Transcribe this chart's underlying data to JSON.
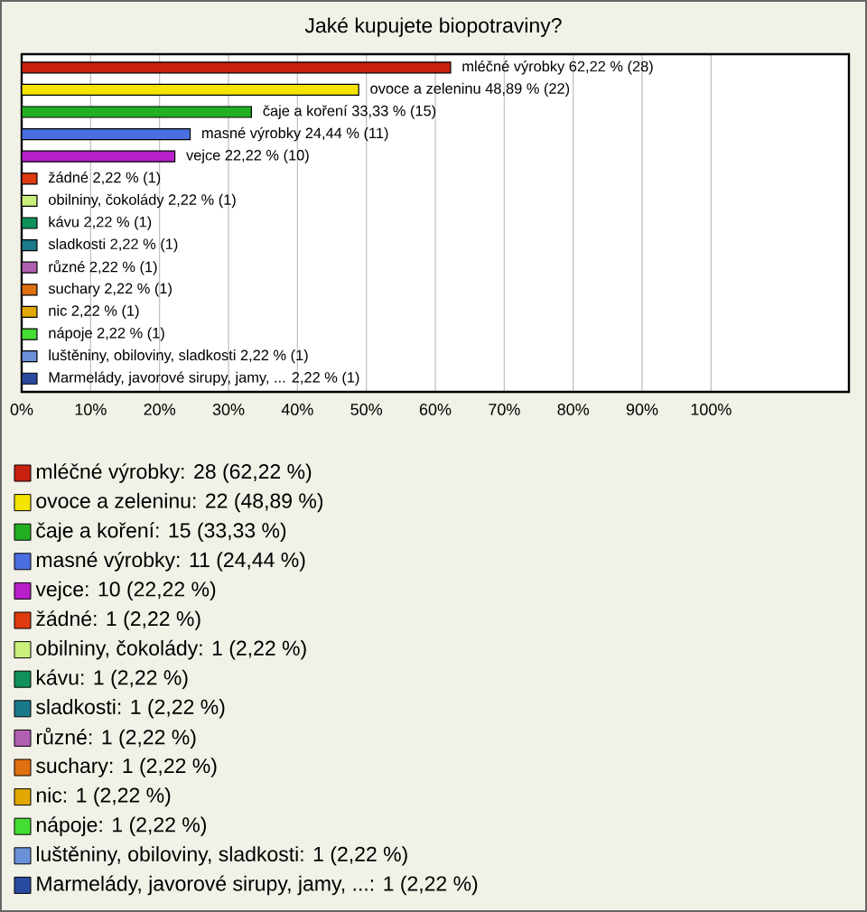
{
  "chart_data": {
    "type": "bar",
    "orientation": "horizontal",
    "title": "Jaké kupujete biopotraviny?",
    "categories": [
      null,
      null,
      null,
      null,
      null,
      null,
      null,
      null,
      null,
      null,
      null,
      null,
      null,
      null,
      null
    ],
    "values": [
      62.22,
      48.89,
      33.33,
      24.44,
      22.22,
      2.22,
      2.22,
      2.22,
      2.22,
      2.22,
      2.22,
      2.22,
      2.22,
      2.22,
      2.22
    ],
    "colors": [
      "#c8200e",
      "#f4e400",
      "#22b022",
      "#4a6fe0",
      "#b71fc8",
      "#e03a10",
      "#c8f07a",
      "#10905a",
      "#1a7a8a",
      "#b060b0",
      "#e07010",
      "#e0a800",
      "#44dd33",
      "#6a90d8",
      "#2a4aa0"
    ],
    "value_labels": [
      "mléčné výrobky 62,22 % (28)",
      "ovoce a zeleninu 48,89 % (22)",
      "čaje a koření 33,33 % (15)",
      "masné výrobky 24,44 % (11)",
      "vejce 22,22 % (10)",
      "žádné 2,22 % (1)",
      "obilniny, čokolády 2,22 % (1)",
      "kávu 2,22 % (1)",
      "sladkosti 2,22 % (1)",
      "různé 2,22 % (1)",
      "suchary 2,22 % (1)",
      "nic 2,22 % (1)",
      "nápoje 2,22 % (1)",
      "luštěniny, obiloviny, sladkosti 2,22 % (1)",
      "Marmelády, javorové sirupy, jamy, ... 2,22 % (1)"
    ],
    "xlim": [
      0,
      120
    ],
    "xticks": [
      {
        "value": 0,
        "label": "0%"
      },
      {
        "value": 10,
        "label": "10%"
      },
      {
        "value": 20,
        "label": "20%"
      },
      {
        "value": 30,
        "label": "30%"
      },
      {
        "value": 40,
        "label": "40%"
      },
      {
        "value": 50,
        "label": "50%"
      },
      {
        "value": 60,
        "label": "60%"
      },
      {
        "value": 70,
        "label": "70%"
      },
      {
        "value": 80,
        "label": "80%"
      },
      {
        "value": 90,
        "label": "90%"
      },
      {
        "value": 100,
        "label": "100%"
      }
    ],
    "grid": "x",
    "annotations": [
      "mléčné výrobky: 28 (62,22 %)",
      "ovoce a zeleninu: 22 (48,89 %)",
      "čaje a koření: 15 (33,33 %)",
      "masné výrobky: 11 (24,44 %)",
      "vejce: 10 (22,22 %)",
      "žádné: 1 (2,22 %)",
      "obilniny, čokolády: 1 (2,22 %)",
      "kávu: 1 (2,22 %)",
      "sladkosti: 1 (2,22 %)",
      "různé: 1 (2,22 %)",
      "suchary: 1 (2,22 %)",
      "nic: 1 (2,22 %)",
      "nápoje: 1 (2,22 %)",
      "luštěniny, obiloviny, sladkosti: 1 (2,22 %)",
      "Marmelády, javorové sirupy, jamy, ...: 1 (2,22 %)"
    ]
  }
}
